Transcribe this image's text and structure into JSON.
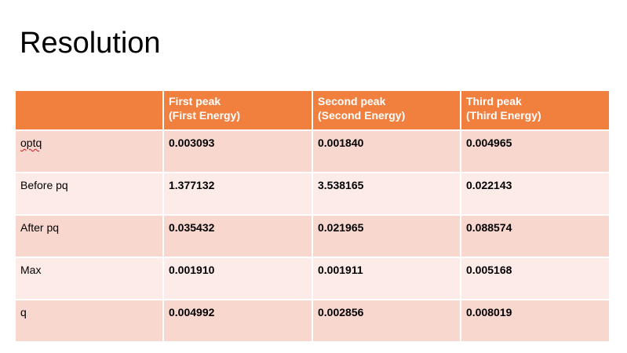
{
  "slide": {
    "title": "Resolution"
  },
  "table": {
    "headers": [
      {
        "line1": "",
        "line2": ""
      },
      {
        "line1": "First peak",
        "line2": "(First Energy)"
      },
      {
        "line1": "Second peak",
        "line2": "(Second Energy)"
      },
      {
        "line1": "Third peak",
        "line2": "(Third Energy)"
      }
    ],
    "rows": [
      {
        "label": "optq",
        "values": [
          "0.003093",
          "0.001840",
          "0.004965"
        ]
      },
      {
        "label": "Before pq",
        "values": [
          "1.377132",
          "3.538165",
          "0.022143"
        ]
      },
      {
        "label": "After pq",
        "values": [
          "0.035432",
          "0.021965",
          "0.088574"
        ]
      },
      {
        "label": "Max",
        "values": [
          "0.001910",
          "0.001911",
          "0.005168"
        ]
      },
      {
        "label": "q",
        "values": [
          "0.004992",
          "0.002856",
          "0.008019"
        ]
      }
    ]
  },
  "colors": {
    "header_bg": "#f1803f",
    "row_odd_bg": "#f8d7cf",
    "row_even_bg": "#fdebe8"
  }
}
